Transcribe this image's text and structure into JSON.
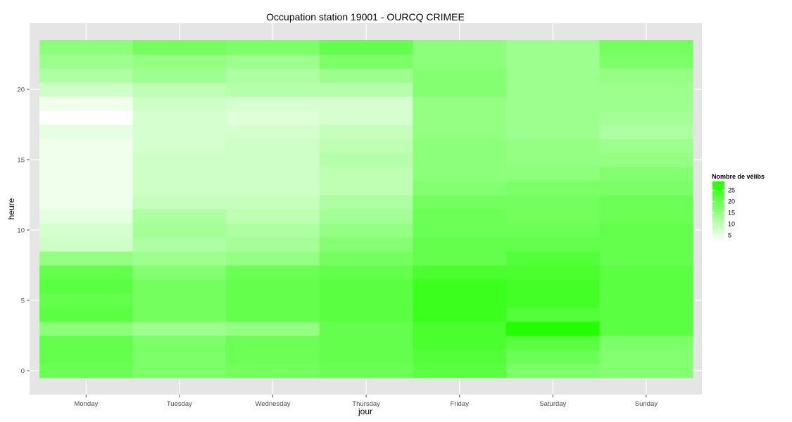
{
  "chart_data": {
    "type": "heatmap",
    "title": "Occupation station 19001 - OURCQ CRIMEE",
    "xlabel": "jour",
    "ylabel": "heure",
    "x_categories": [
      "Monday",
      "Tuesday",
      "Wednesday",
      "Thursday",
      "Friday",
      "Saturday",
      "Sunday"
    ],
    "y_values": [
      0,
      1,
      2,
      3,
      4,
      5,
      6,
      7,
      8,
      9,
      10,
      11,
      12,
      13,
      14,
      15,
      16,
      17,
      18,
      19,
      20,
      21,
      22,
      23
    ],
    "y_ticks": [
      0,
      5,
      10,
      15,
      20
    ],
    "ylim": [
      -0.5,
      23.5
    ],
    "grid": true,
    "background": "#e5e5e5",
    "values": [
      [
        20,
        18,
        19,
        20,
        22,
        18,
        17
      ],
      [
        21,
        18,
        20,
        21,
        23,
        20,
        17
      ],
      [
        21,
        18,
        20,
        21,
        24,
        22,
        18
      ],
      [
        16,
        14,
        15,
        21,
        24,
        29,
        22
      ],
      [
        22,
        19,
        21,
        22,
        26,
        23,
        22
      ],
      [
        21,
        19,
        21,
        22,
        26,
        25,
        22
      ],
      [
        22,
        19,
        21,
        22,
        26,
        25,
        22
      ],
      [
        21,
        17,
        20,
        21,
        24,
        24,
        22
      ],
      [
        15,
        14,
        15,
        19,
        21,
        23,
        21
      ],
      [
        8,
        12,
        13,
        17,
        21,
        21,
        21
      ],
      [
        7,
        13,
        12,
        15,
        20,
        20,
        21
      ],
      [
        5,
        12,
        10,
        13,
        20,
        19,
        20
      ],
      [
        4,
        9,
        9,
        12,
        19,
        19,
        20
      ],
      [
        4,
        8,
        8,
        10,
        17,
        18,
        18
      ],
      [
        4,
        8,
        8,
        10,
        16,
        16,
        17
      ],
      [
        4,
        8,
        8,
        11,
        16,
        15,
        15
      ],
      [
        4,
        7,
        8,
        10,
        16,
        15,
        14
      ],
      [
        5,
        7,
        7,
        9,
        15,
        14,
        12
      ],
      [
        2,
        7,
        6,
        7,
        15,
        14,
        13
      ],
      [
        4,
        8,
        7,
        7,
        15,
        14,
        14
      ],
      [
        8,
        10,
        11,
        11,
        17,
        14,
        14
      ],
      [
        12,
        14,
        12,
        14,
        17,
        14,
        15
      ],
      [
        14,
        15,
        14,
        18,
        16,
        14,
        18
      ],
      [
        16,
        19,
        18,
        21,
        16,
        14,
        19
      ]
    ],
    "legend": {
      "title": "Nombre de vélibs",
      "ticks": [
        5,
        10,
        15,
        20,
        25
      ],
      "range": [
        2,
        29
      ],
      "position": "right",
      "low_color": "#ffffff",
      "high_color": "#22ff00"
    }
  }
}
